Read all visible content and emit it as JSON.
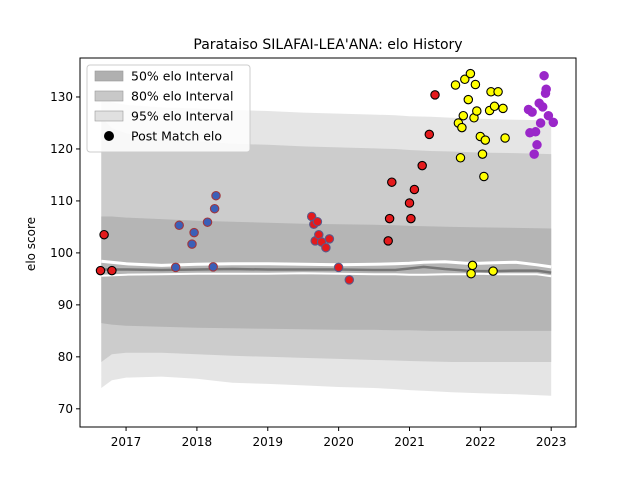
{
  "chart_data": {
    "type": "scatter",
    "title": "Parataiso SILAFAI-LEA'ANA: elo History",
    "xlabel": "",
    "ylabel": "elo score",
    "xlim": [
      2016.35,
      2023.35
    ],
    "ylim": [
      66.5,
      137.5
    ],
    "x_ticks": [
      2017,
      2018,
      2019,
      2020,
      2021,
      2022,
      2023
    ],
    "x_tick_labels": [
      "2017",
      "2018",
      "2019",
      "2020",
      "2021",
      "2022",
      "2023"
    ],
    "y_ticks": [
      70,
      80,
      90,
      100,
      110,
      120,
      130
    ],
    "y_tick_labels": [
      "70",
      "80",
      "90",
      "100",
      "110",
      "120",
      "130"
    ],
    "grid": false,
    "legend_position": "top-left",
    "legend": [
      {
        "label": "50% elo Interval",
        "kind": "band",
        "color": "#b0b0b0"
      },
      {
        "label": "80% elo Interval",
        "kind": "band",
        "color": "#c8c8c8"
      },
      {
        "label": "95% elo Interval",
        "kind": "band",
        "color": "#e0e0e0"
      },
      {
        "label": "Post Match elo",
        "kind": "marker",
        "color": "#000000"
      }
    ],
    "bands": {
      "x": [
        2016.65,
        2016.8,
        2017.0,
        2017.5,
        2018.0,
        2018.5,
        2019.0,
        2019.5,
        2020.0,
        2020.5,
        2020.8,
        2021.0,
        2021.3,
        2021.6,
        2022.0,
        2022.5,
        2023.0
      ],
      "p50_upper": [
        107.0,
        107.0,
        106.8,
        106.5,
        106.2,
        106.0,
        105.8,
        105.6,
        105.5,
        105.4,
        105.3,
        105.2,
        105.1,
        105.0,
        104.9,
        104.8,
        104.7
      ],
      "p50_lower": [
        86.5,
        86.2,
        86.0,
        85.8,
        85.6,
        85.5,
        85.4,
        85.3,
        85.2,
        85.2,
        85.1,
        85.1,
        85.0,
        85.0,
        85.0,
        85.0,
        85.0
      ],
      "p80_upper": [
        126.0,
        124.0,
        123.0,
        122.0,
        121.5,
        121.0,
        120.8,
        120.5,
        120.3,
        120.1,
        120.0,
        119.8,
        119.6,
        119.5,
        119.3,
        119.2,
        119.0
      ],
      "p80_lower": [
        79.0,
        80.5,
        80.8,
        80.8,
        80.5,
        80.2,
        80.0,
        79.8,
        79.6,
        79.4,
        79.3,
        79.2,
        79.1,
        79.0,
        79.0,
        79.0,
        79.0
      ],
      "p95_upper": [
        130.0,
        129.0,
        128.5,
        128.0,
        127.8,
        127.5,
        127.3,
        127.0,
        126.8,
        126.6,
        126.5,
        126.3,
        126.2,
        126.0,
        125.8,
        125.6,
        125.5
      ],
      "p95_lower": [
        74.0,
        75.5,
        76.0,
        76.2,
        75.8,
        75.0,
        74.8,
        74.5,
        74.2,
        74.0,
        73.8,
        73.6,
        73.4,
        73.2,
        73.0,
        72.8,
        72.5
      ]
    },
    "mean_lines": {
      "x": [
        2016.65,
        2017.0,
        2017.5,
        2018.0,
        2018.5,
        2019.0,
        2019.5,
        2020.0,
        2020.5,
        2020.8,
        2021.0,
        2021.2,
        2021.5,
        2021.8,
        2022.0,
        2022.2,
        2022.5,
        2022.8,
        2023.0
      ],
      "upper": [
        98.4,
        97.9,
        97.6,
        97.8,
        97.9,
        97.9,
        97.8,
        97.7,
        97.8,
        97.9,
        98.0,
        98.2,
        98.3,
        98.0,
        98.0,
        98.1,
        98.2,
        97.7,
        97.3
      ],
      "middle": [
        96.8,
        96.8,
        96.7,
        96.8,
        96.9,
        96.8,
        96.8,
        96.8,
        96.7,
        96.7,
        97.0,
        97.3,
        96.9,
        96.6,
        96.5,
        96.5,
        96.6,
        96.6,
        96.2
      ],
      "lower": [
        95.6,
        95.8,
        95.9,
        96.0,
        96.0,
        96.0,
        96.1,
        96.0,
        95.9,
        95.9,
        95.8,
        95.8,
        95.9,
        95.9,
        96.0,
        95.9,
        95.9,
        95.9,
        95.5
      ]
    },
    "series": [
      {
        "color": "#e41a1c",
        "edge": "#000000",
        "points": [
          [
            2016.64,
            96.6
          ],
          [
            2016.69,
            103.5
          ],
          [
            2016.8,
            96.6
          ]
        ]
      },
      {
        "color": "#3a5fb8",
        "edge": "#a0363c",
        "points": [
          [
            2017.7,
            97.2
          ],
          [
            2017.75,
            105.3
          ],
          [
            2017.93,
            101.7
          ],
          [
            2017.96,
            103.9
          ],
          [
            2018.15,
            105.9
          ],
          [
            2018.25,
            108.5
          ],
          [
            2018.27,
            111.0
          ],
          [
            2018.23,
            97.3
          ]
        ]
      },
      {
        "color": "#e41a1c",
        "edge": "#5a5a8a",
        "points": [
          [
            2019.62,
            107.0
          ],
          [
            2019.65,
            105.5
          ],
          [
            2019.67,
            102.3
          ],
          [
            2019.7,
            106.0
          ],
          [
            2019.72,
            103.5
          ],
          [
            2019.76,
            102.1
          ],
          [
            2019.82,
            101.0
          ],
          [
            2019.87,
            102.7
          ],
          [
            2020.0,
            97.2
          ],
          [
            2020.15,
            94.8
          ]
        ]
      },
      {
        "color": "#e41a1c",
        "edge": "#000000",
        "points": [
          [
            2020.7,
            102.3
          ],
          [
            2020.72,
            106.6
          ],
          [
            2020.75,
            113.6
          ],
          [
            2021.0,
            109.6
          ],
          [
            2021.02,
            106.6
          ],
          [
            2021.07,
            112.2
          ],
          [
            2021.18,
            116.8
          ],
          [
            2021.28,
            122.8
          ],
          [
            2021.36,
            130.4
          ]
        ]
      },
      {
        "color": "#ffff00",
        "edge": "#000000",
        "points": [
          [
            2021.65,
            132.3
          ],
          [
            2021.69,
            125.0
          ],
          [
            2021.72,
            118.3
          ],
          [
            2021.74,
            124.1
          ],
          [
            2021.76,
            126.4
          ],
          [
            2021.78,
            133.4
          ],
          [
            2021.83,
            129.5
          ],
          [
            2021.86,
            134.5
          ],
          [
            2021.87,
            96.0
          ],
          [
            2021.89,
            97.6
          ],
          [
            2021.91,
            126.0
          ],
          [
            2021.93,
            132.4
          ],
          [
            2021.95,
            127.3
          ],
          [
            2022.0,
            122.4
          ],
          [
            2022.03,
            119.0
          ],
          [
            2022.05,
            114.7
          ],
          [
            2022.07,
            121.7
          ],
          [
            2022.13,
            127.4
          ],
          [
            2022.15,
            131.0
          ],
          [
            2022.18,
            96.5
          ],
          [
            2022.2,
            128.2
          ],
          [
            2022.25,
            131.0
          ],
          [
            2022.32,
            127.8
          ],
          [
            2022.35,
            122.1
          ]
        ]
      },
      {
        "color": "#9a27c9",
        "edge": "#9a27c9",
        "points": [
          [
            2022.68,
            127.6
          ],
          [
            2022.7,
            123.1
          ],
          [
            2022.73,
            127.1
          ],
          [
            2022.76,
            119.0
          ],
          [
            2022.78,
            123.3
          ],
          [
            2022.8,
            120.8
          ],
          [
            2022.83,
            128.8
          ],
          [
            2022.85,
            125.0
          ],
          [
            2022.88,
            128.1
          ],
          [
            2022.9,
            134.1
          ],
          [
            2022.92,
            130.7
          ],
          [
            2022.93,
            131.5
          ],
          [
            2022.96,
            126.4
          ],
          [
            2023.03,
            125.1
          ]
        ]
      }
    ]
  }
}
